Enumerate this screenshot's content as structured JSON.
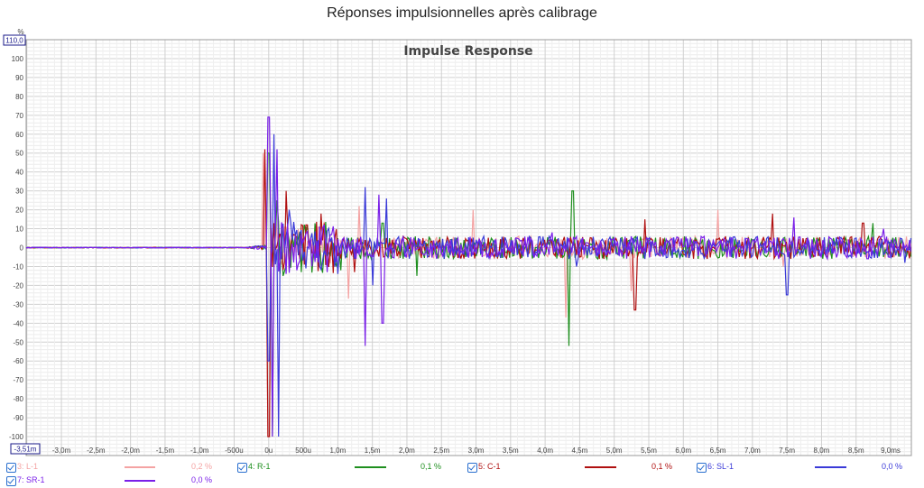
{
  "title": "Réponses impulsionnelles après calibrage",
  "chart_data": {
    "type": "line",
    "title": "Impulse Response",
    "ylabel": "%",
    "ylim": [
      -110,
      110
    ],
    "xlim": [
      -3.51,
      9.3
    ],
    "y_max_box": "110,0",
    "x_min_box": "-3,51m",
    "y_ticks": [
      100,
      90,
      80,
      70,
      60,
      50,
      40,
      30,
      20,
      10,
      0,
      -10,
      -20,
      -30,
      -40,
      -50,
      -60,
      -70,
      -80,
      -90,
      -100
    ],
    "y_tick_labels": [
      "100",
      "90",
      "80",
      "70",
      "60",
      "50",
      "40",
      "30",
      "20",
      "10",
      "0",
      "-10",
      "-20",
      "-30",
      "-40",
      "-50",
      "-60",
      "-70",
      "-80",
      "-90",
      "-100"
    ],
    "x_ticks": [
      -3.0,
      -2.5,
      -2.0,
      -1.5,
      -1.0,
      -0.5,
      0,
      0.5,
      1.0,
      1.5,
      2.0,
      2.5,
      3.0,
      3.5,
      4.0,
      4.5,
      5.0,
      5.5,
      6.0,
      6.5,
      7.0,
      7.5,
      8.0,
      8.5,
      9.0
    ],
    "x_tick_labels": [
      "-3,0m",
      "-2,5m",
      "-2,0m",
      "-1,5m",
      "-1,0m",
      "-500u",
      "0u",
      "500u",
      "1,0m",
      "1,5m",
      "2,0m",
      "2,5m",
      "3,0m",
      "3,5m",
      "4,0m",
      "4,5m",
      "5,0m",
      "5,5m",
      "6,0m",
      "6,5m",
      "7,0m",
      "7,5m",
      "8,0m",
      "8,5m",
      "9,0ms"
    ],
    "grid": true,
    "series": [
      {
        "name": "3: L-1",
        "value": "0,2 %",
        "color": "#f4a3a3",
        "peaks": [
          [
            -0.08,
            50
          ],
          [
            0.0,
            -100
          ],
          [
            0.1,
            20
          ],
          [
            1.15,
            -27
          ],
          [
            1.3,
            22
          ],
          [
            2.95,
            20
          ],
          [
            4.3,
            -37
          ],
          [
            5.25,
            -23
          ],
          [
            6.5,
            20
          ],
          [
            7.45,
            -10
          ]
        ]
      },
      {
        "name": "4: R-1",
        "value": "0,1 %",
        "color": "#1f8f1f",
        "peaks": [
          [
            0.0,
            50
          ],
          [
            0.05,
            -100
          ],
          [
            0.12,
            25
          ],
          [
            0.2,
            -15
          ],
          [
            1.05,
            -12
          ],
          [
            1.65,
            13
          ],
          [
            2.15,
            -15
          ],
          [
            4.35,
            -52
          ],
          [
            4.4,
            30
          ],
          [
            8.75,
            13
          ]
        ]
      },
      {
        "name": "5: C-1",
        "value": "0,1 %",
        "color": "#b01010",
        "peaks": [
          [
            -0.05,
            52
          ],
          [
            0.0,
            -100
          ],
          [
            0.25,
            30
          ],
          [
            0.55,
            12
          ],
          [
            0.75,
            18
          ],
          [
            1.25,
            -13
          ],
          [
            5.3,
            -33
          ],
          [
            5.45,
            15
          ],
          [
            7.3,
            18
          ],
          [
            8.6,
            13
          ]
        ]
      },
      {
        "name": "6: SL-1",
        "value": "0,0 %",
        "color": "#3a3ad8",
        "peaks": [
          [
            0.0,
            -60
          ],
          [
            0.08,
            60
          ],
          [
            0.15,
            -100
          ],
          [
            0.3,
            20
          ],
          [
            1.4,
            32
          ],
          [
            1.5,
            -20
          ],
          [
            1.7,
            26
          ],
          [
            4.45,
            -10
          ],
          [
            7.5,
            -25
          ],
          [
            9.2,
            -8
          ]
        ]
      },
      {
        "name": "7: SR-1",
        "value": "0,0 %",
        "color": "#7a1fe8",
        "peaks": [
          [
            0.0,
            69
          ],
          [
            0.06,
            -100
          ],
          [
            0.12,
            52
          ],
          [
            0.4,
            -12
          ],
          [
            1.4,
            -52
          ],
          [
            1.6,
            28
          ],
          [
            1.65,
            -40
          ],
          [
            4.1,
            8
          ],
          [
            7.6,
            16
          ],
          [
            8.9,
            10
          ]
        ]
      }
    ]
  }
}
